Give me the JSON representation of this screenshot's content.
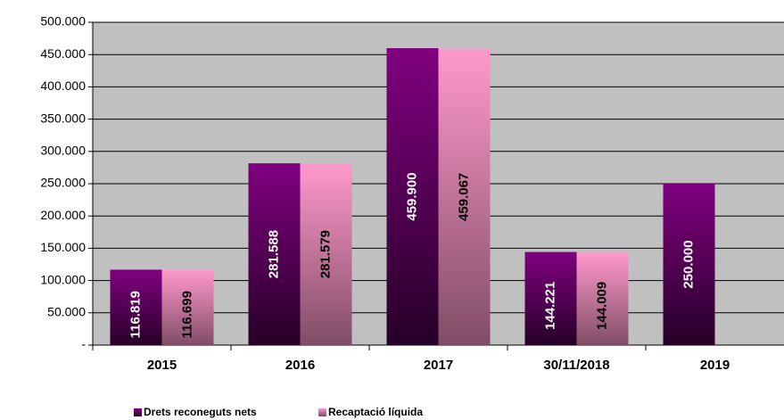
{
  "chart_data": {
    "type": "bar",
    "categories": [
      "2015",
      "2016",
      "2017",
      "30/11/2018",
      "2019"
    ],
    "series": [
      {
        "name": "Drets reconeguts nets",
        "color": "#800080",
        "label_color": "#ffffff",
        "values": [
          116819,
          281588,
          459900,
          144221,
          250000
        ],
        "value_labels": [
          "116.819",
          "281.588",
          "459.900",
          "144.221",
          "250.000"
        ]
      },
      {
        "name": "Recaptació líquida",
        "color": "#ff99cc",
        "label_color": "#000000",
        "values": [
          116699,
          281579,
          459067,
          144009,
          null
        ],
        "value_labels": [
          "116.699",
          "281.579",
          "459.067",
          "144.009",
          null
        ]
      }
    ],
    "ylim": [
      0,
      500000
    ],
    "yticks": [
      {
        "value": 0,
        "label": "-"
      },
      {
        "value": 50000,
        "label": "50.000"
      },
      {
        "value": 100000,
        "label": "100.000"
      },
      {
        "value": 150000,
        "label": "150.000"
      },
      {
        "value": 200000,
        "label": "200.000"
      },
      {
        "value": 250000,
        "label": "250.000"
      },
      {
        "value": 300000,
        "label": "300.000"
      },
      {
        "value": 350000,
        "label": "350.000"
      },
      {
        "value": 400000,
        "label": "400.000"
      },
      {
        "value": 450000,
        "label": "450.000"
      },
      {
        "value": 500000,
        "label": "500.000"
      }
    ],
    "grid": true,
    "plot_background": "#c0c0c0",
    "legend": "bottom"
  }
}
